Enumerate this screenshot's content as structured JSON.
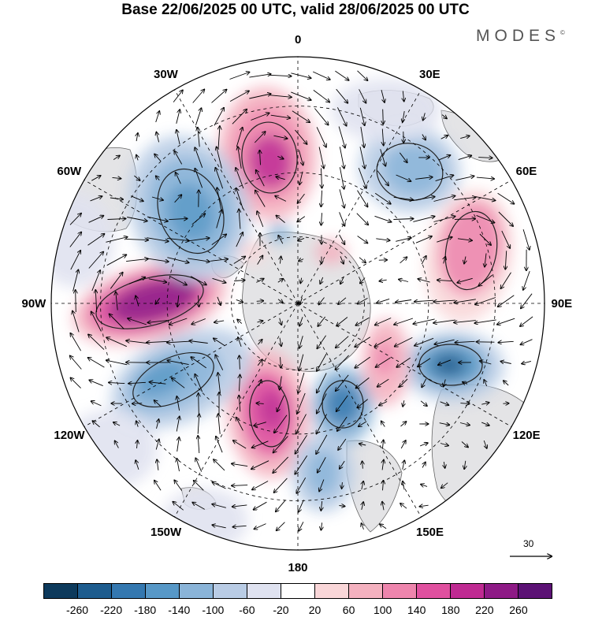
{
  "title": "Base 22/06/2025 00 UTC, valid 28/06/2025 00 UTC",
  "brand": "MODES",
  "brand_mark": "©",
  "longitude_labels": [
    {
      "text": "0",
      "azimuth": 0
    },
    {
      "text": "30E",
      "azimuth": 30
    },
    {
      "text": "60E",
      "azimuth": 60
    },
    {
      "text": "90E",
      "azimuth": 90
    },
    {
      "text": "120E",
      "azimuth": 120
    },
    {
      "text": "150E",
      "azimuth": 150
    },
    {
      "text": "180",
      "azimuth": 180
    },
    {
      "text": "150W",
      "azimuth": 210
    },
    {
      "text": "120W",
      "azimuth": 240
    },
    {
      "text": "90W",
      "azimuth": 270
    },
    {
      "text": "60W",
      "azimuth": 300
    },
    {
      "text": "30W",
      "azimuth": 330
    }
  ],
  "reference_vector": {
    "label": "30"
  },
  "colorbar": {
    "colors": [
      "#0d3a5c",
      "#1d5c8e",
      "#3478b0",
      "#5798c7",
      "#8ab4d8",
      "#b9cce5",
      "#dfe2f0",
      "#ffffff",
      "#f9d6d8",
      "#f4b1bf",
      "#ee85ad",
      "#e0509f",
      "#bf2a92",
      "#8e1a86",
      "#5c1275"
    ],
    "ticks": [
      "-260",
      "-220",
      "-180",
      "-140",
      "-100",
      "-60",
      "-20",
      "20",
      "60",
      "100",
      "140",
      "180",
      "220",
      "260"
    ]
  },
  "map_colors": {
    "land": "#e4e4e6",
    "coast": "#666666",
    "grid": "#000000",
    "contour": "#222222"
  }
}
